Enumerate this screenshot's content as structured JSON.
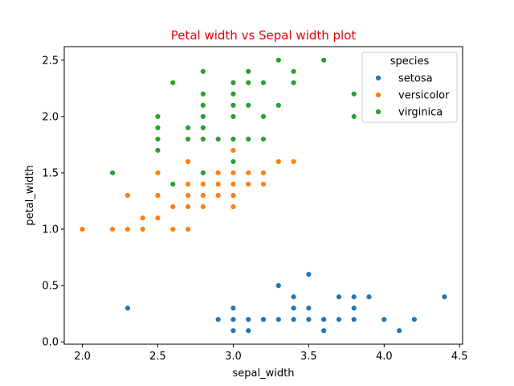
{
  "chart_data": {
    "type": "scatter",
    "title": "Petal width vs Sepal width plot",
    "title_color": "#e8000b",
    "xlabel": "sepal_width",
    "ylabel": "petal_width",
    "xlim": [
      1.88,
      4.52
    ],
    "ylim": [
      -0.02,
      2.62
    ],
    "xticks": [
      "2.0",
      "2.5",
      "3.0",
      "3.5",
      "4.0",
      "4.5"
    ],
    "yticks": [
      "0.0",
      "0.5",
      "1.0",
      "1.5",
      "2.0",
      "2.5"
    ],
    "grid": false,
    "legend": {
      "title": "species",
      "position": "top-right"
    },
    "series": [
      {
        "name": "setosa",
        "color": "#1f77b4",
        "points": [
          [
            2.3,
            0.3
          ],
          [
            2.9,
            0.2
          ],
          [
            3.0,
            0.1
          ],
          [
            3.0,
            0.2
          ],
          [
            3.0,
            0.3
          ],
          [
            3.1,
            0.1
          ],
          [
            3.1,
            0.2
          ],
          [
            3.2,
            0.2
          ],
          [
            3.3,
            0.2
          ],
          [
            3.3,
            0.5
          ],
          [
            3.4,
            0.2
          ],
          [
            3.4,
            0.3
          ],
          [
            3.4,
            0.4
          ],
          [
            3.5,
            0.2
          ],
          [
            3.5,
            0.3
          ],
          [
            3.5,
            0.6
          ],
          [
            3.6,
            0.1
          ],
          [
            3.6,
            0.2
          ],
          [
            3.7,
            0.2
          ],
          [
            3.7,
            0.4
          ],
          [
            3.8,
            0.2
          ],
          [
            3.8,
            0.3
          ],
          [
            3.8,
            0.4
          ],
          [
            3.9,
            0.4
          ],
          [
            4.0,
            0.2
          ],
          [
            4.1,
            0.1
          ],
          [
            4.2,
            0.2
          ],
          [
            4.4,
            0.4
          ]
        ]
      },
      {
        "name": "versicolor",
        "color": "#ff7f0e",
        "points": [
          [
            2.0,
            1.0
          ],
          [
            2.2,
            1.0
          ],
          [
            2.2,
            1.5
          ],
          [
            2.3,
            1.0
          ],
          [
            2.3,
            1.3
          ],
          [
            2.4,
            1.0
          ],
          [
            2.4,
            1.1
          ],
          [
            2.5,
            1.1
          ],
          [
            2.5,
            1.3
          ],
          [
            2.5,
            1.5
          ],
          [
            2.6,
            1.0
          ],
          [
            2.6,
            1.2
          ],
          [
            2.7,
            1.0
          ],
          [
            2.7,
            1.2
          ],
          [
            2.7,
            1.3
          ],
          [
            2.7,
            1.4
          ],
          [
            2.7,
            1.6
          ],
          [
            2.8,
            1.2
          ],
          [
            2.8,
            1.3
          ],
          [
            2.8,
            1.4
          ],
          [
            2.8,
            1.5
          ],
          [
            2.9,
            1.3
          ],
          [
            2.9,
            1.4
          ],
          [
            2.9,
            1.5
          ],
          [
            3.0,
            1.2
          ],
          [
            3.0,
            1.3
          ],
          [
            3.0,
            1.4
          ],
          [
            3.0,
            1.5
          ],
          [
            3.0,
            1.7
          ],
          [
            3.1,
            1.4
          ],
          [
            3.1,
            1.5
          ],
          [
            3.2,
            1.4
          ],
          [
            3.2,
            1.5
          ],
          [
            3.3,
            1.6
          ],
          [
            3.4,
            1.6
          ]
        ]
      },
      {
        "name": "virginica",
        "color": "#2ca02c",
        "points": [
          [
            2.2,
            1.5
          ],
          [
            2.5,
            1.7
          ],
          [
            2.5,
            1.8
          ],
          [
            2.5,
            1.9
          ],
          [
            2.5,
            2.0
          ],
          [
            2.6,
            1.4
          ],
          [
            2.6,
            2.3
          ],
          [
            2.7,
            1.8
          ],
          [
            2.7,
            1.9
          ],
          [
            2.8,
            1.5
          ],
          [
            2.8,
            1.8
          ],
          [
            2.8,
            1.9
          ],
          [
            2.8,
            2.0
          ],
          [
            2.8,
            2.1
          ],
          [
            2.8,
            2.2
          ],
          [
            2.8,
            2.4
          ],
          [
            2.9,
            1.8
          ],
          [
            3.0,
            1.6
          ],
          [
            3.0,
            1.8
          ],
          [
            3.0,
            2.0
          ],
          [
            3.0,
            2.1
          ],
          [
            3.0,
            2.2
          ],
          [
            3.0,
            2.3
          ],
          [
            3.1,
            1.8
          ],
          [
            3.1,
            2.1
          ],
          [
            3.1,
            2.3
          ],
          [
            3.1,
            2.4
          ],
          [
            3.2,
            1.8
          ],
          [
            3.2,
            2.0
          ],
          [
            3.2,
            2.3
          ],
          [
            3.3,
            2.1
          ],
          [
            3.3,
            2.5
          ],
          [
            3.4,
            2.3
          ],
          [
            3.4,
            2.4
          ],
          [
            3.6,
            2.5
          ],
          [
            3.8,
            2.0
          ],
          [
            3.8,
            2.2
          ]
        ]
      }
    ]
  }
}
